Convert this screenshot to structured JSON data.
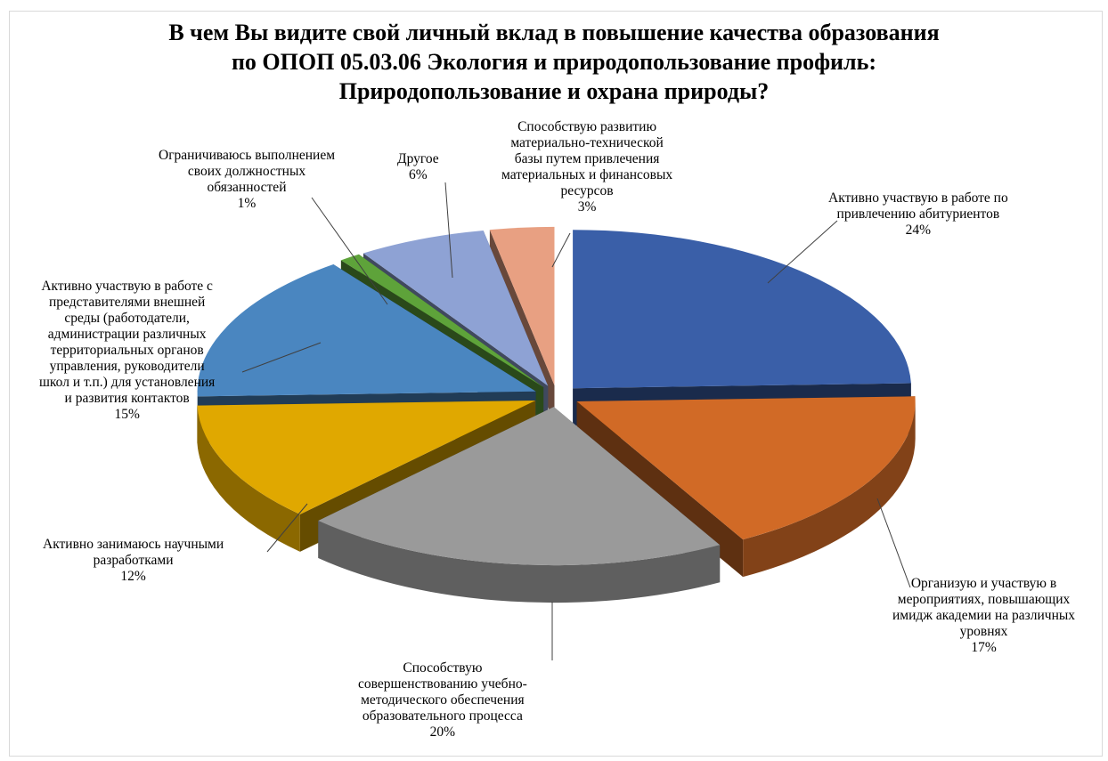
{
  "chart_data": {
    "type": "pie",
    "title_lines": [
      "В чем Вы видите свой личный вклад в повышение качества образования",
      "по ОПОП 05.03.06 Экология и природопользование профиль:",
      "Природопользование и охрана природы?"
    ],
    "slices": [
      {
        "label_lines": [
          "Активно участвую  в работе по",
          "привлечению абитуриентов"
        ],
        "value": 24,
        "pct_text": "24%",
        "color": "#3a5fa8"
      },
      {
        "label_lines": [
          "Организую и участвую в",
          "мероприятиях, повышающих",
          "имидж академии на различных",
          "уровнях"
        ],
        "value": 17,
        "pct_text": "17%",
        "color": "#d16a26"
      },
      {
        "label_lines": [
          "Способствую",
          "совершенствованию учебно-",
          "методического обеспечения",
          "образовательного процесса"
        ],
        "value": 20,
        "pct_text": "20%",
        "color": "#9a9a9a"
      },
      {
        "label_lines": [
          "Активно занимаюсь научными",
          "разработками"
        ],
        "value": 12,
        "pct_text": "12%",
        "color": "#e0a800"
      },
      {
        "label_lines": [
          "Активно участвую  в работе с",
          "представителями внешней",
          "среды (работодатели,",
          "администрации различных",
          "территориальных органов",
          "управления,  руководители",
          "школ и т.п.) для установления",
          "и развития контактов"
        ],
        "value": 15,
        "pct_text": "15%",
        "color": "#4a86c0"
      },
      {
        "label_lines": [
          "Ограничиваюсь выполнением",
          "своих должностных",
          "обязанностей"
        ],
        "value": 1,
        "pct_text": "1%",
        "color": "#5ea33a"
      },
      {
        "label_lines": [
          "Другое"
        ],
        "value": 6,
        "pct_text": "6%",
        "color": "#8ea2d4"
      },
      {
        "label_lines": [
          "Способствую развитию",
          "материально-технической",
          "базы путем  привлечения",
          "материальных и финансовых",
          "ресурсов"
        ],
        "value": 3,
        "pct_text": "3%",
        "color": "#e8a082"
      }
    ],
    "legend": "none",
    "style": "exploded 3D pie"
  }
}
